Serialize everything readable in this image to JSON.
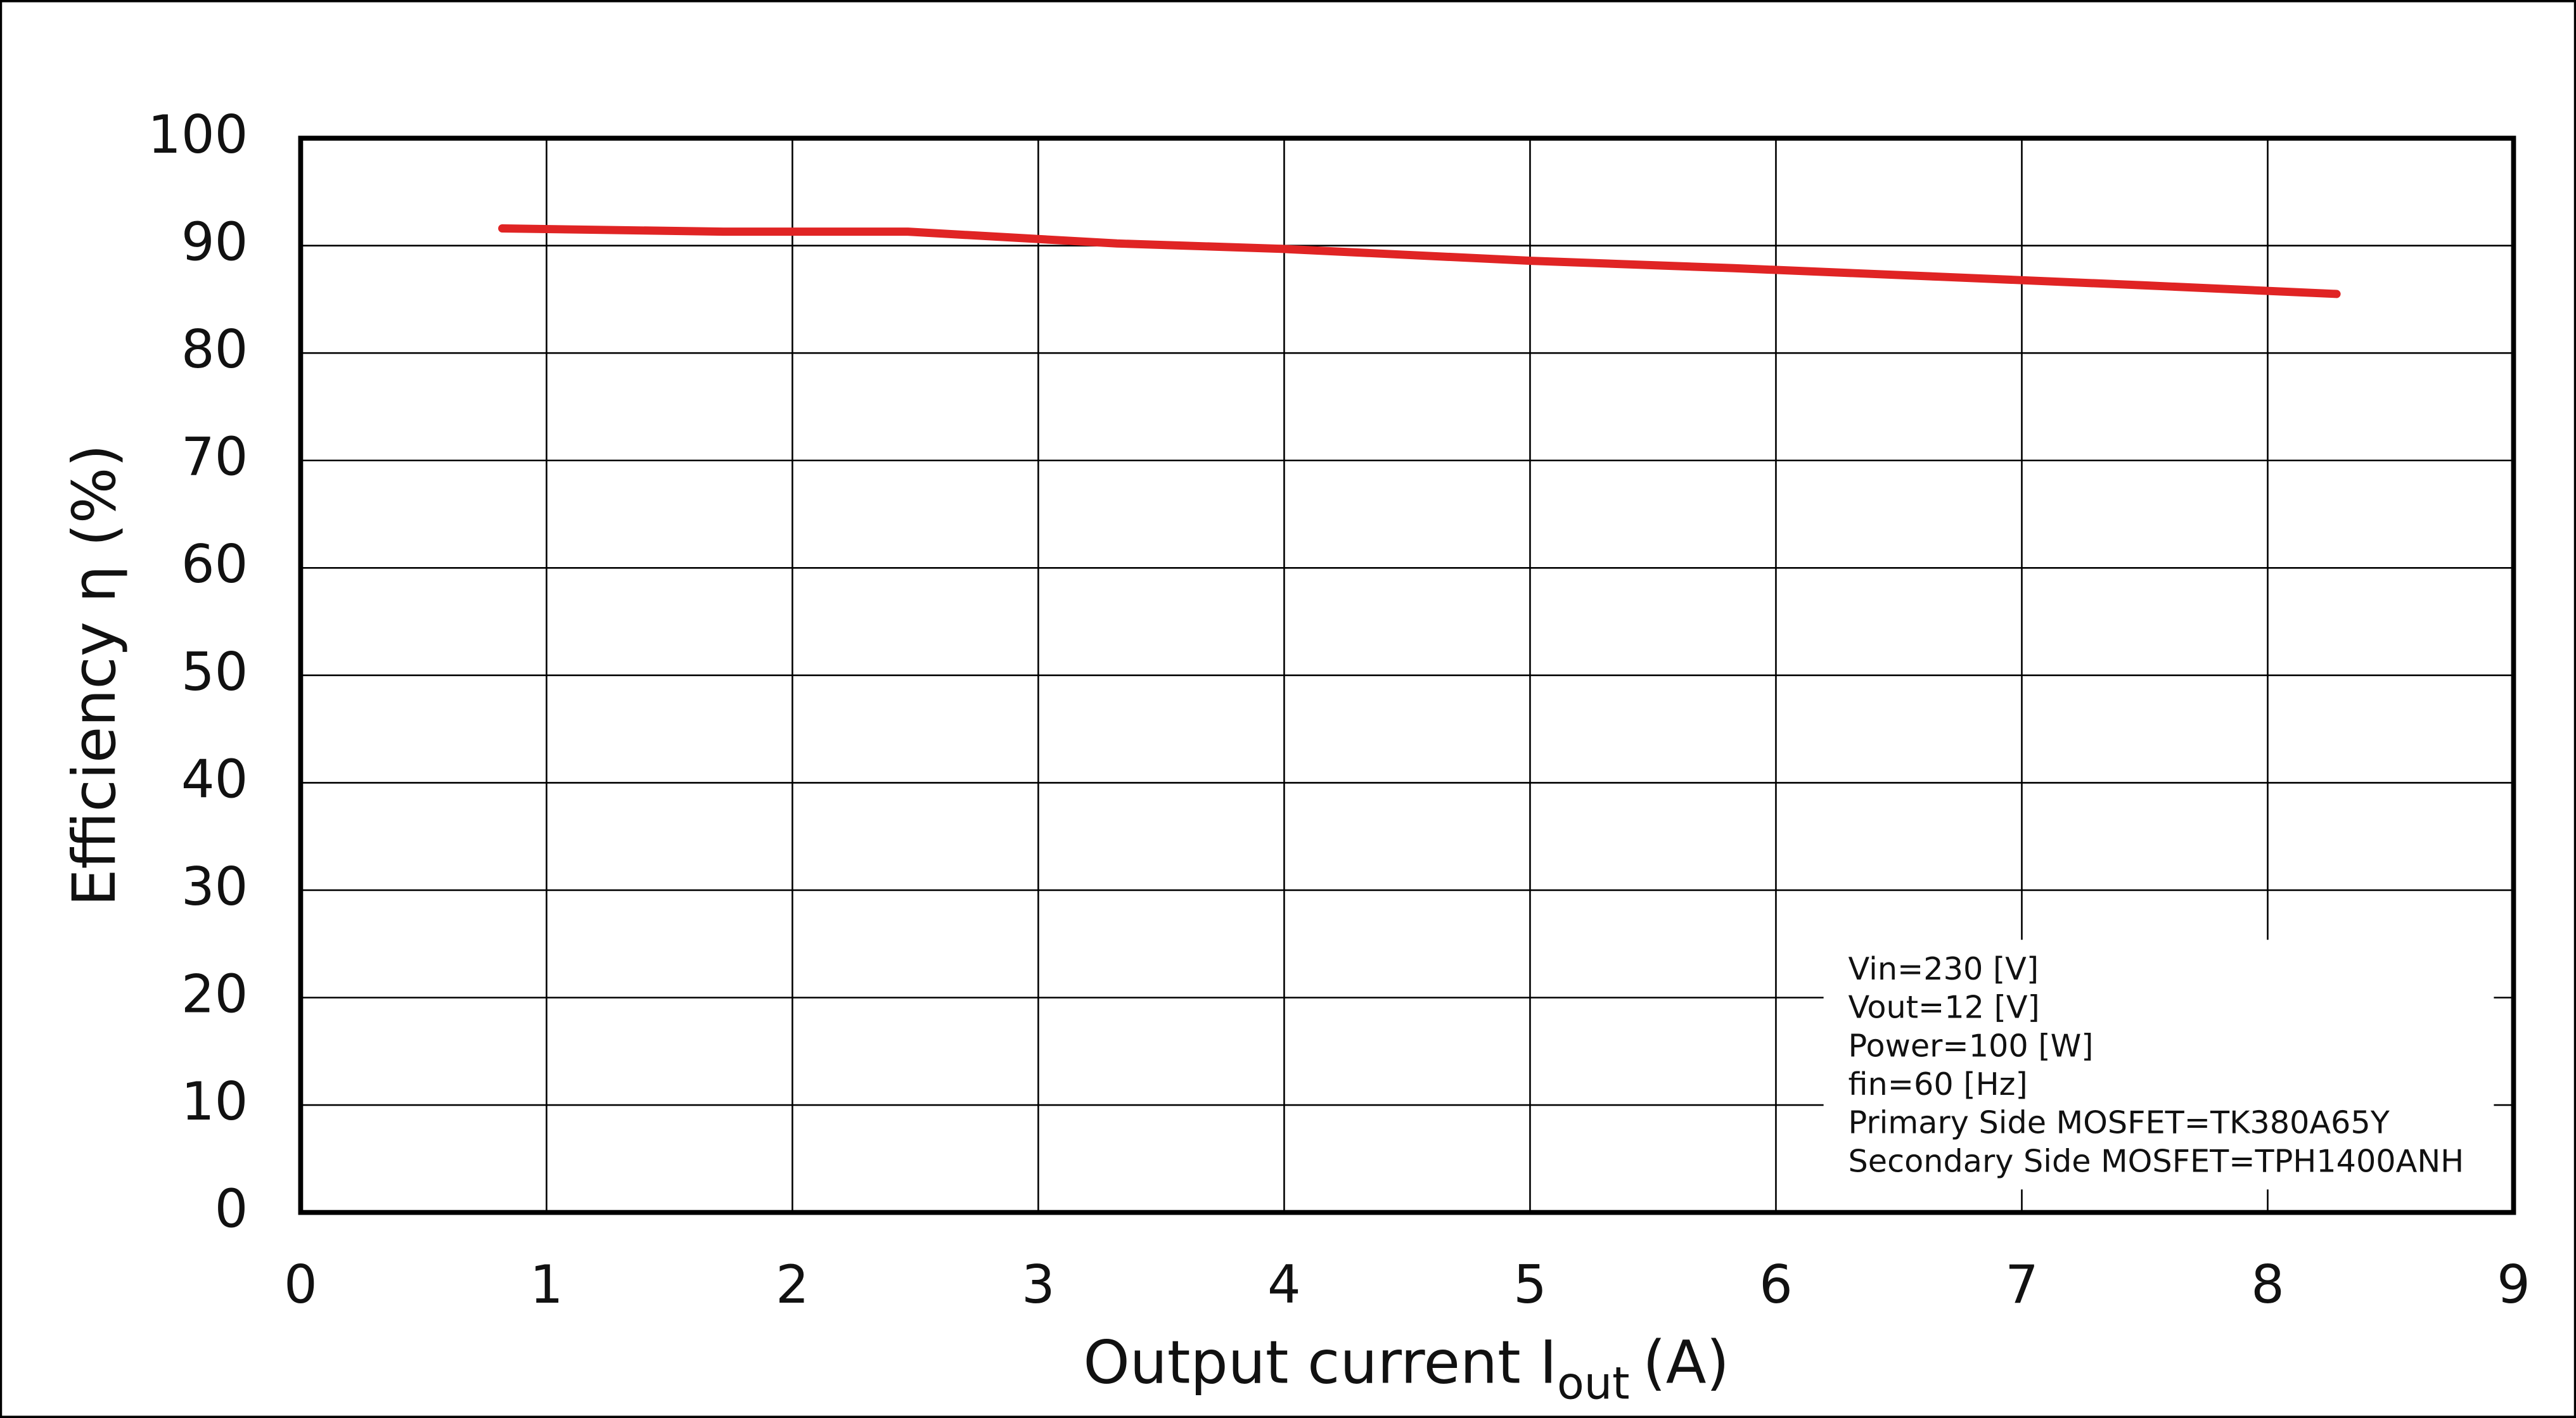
{
  "chart_data": {
    "type": "line",
    "x_label": {
      "main": "Output current  I",
      "sub": "out",
      "unit": "(A)"
    },
    "y_label": "Efficiency  η (%)",
    "x": [
      0.82,
      1.72,
      2.47,
      3.32,
      3.99,
      4.99,
      5.83,
      6.67,
      7.5,
      8.28
    ],
    "series": [
      {
        "name": "Efficiency",
        "color": "#e02424",
        "values": [
          91.6,
          91.3,
          91.3,
          90.2,
          89.7,
          88.6,
          87.9,
          87.1,
          86.3,
          85.5
        ]
      }
    ],
    "xlim": [
      0,
      9
    ],
    "xticks": [
      0,
      1,
      2,
      3,
      4,
      5,
      6,
      7,
      8,
      9
    ],
    "ylim": [
      0,
      100
    ],
    "yticks": [
      0,
      10,
      20,
      30,
      40,
      50,
      60,
      70,
      80,
      90,
      100
    ],
    "grid": true,
    "annotations": [
      "Vin=230 [V]",
      "Vout=12 [V]",
      "Power=100 [W]",
      "fin=60 [Hz]",
      "Primary Side MOSFET=TK380A65Y",
      "Secondary Side MOSFET=TPH1400ANH"
    ]
  }
}
